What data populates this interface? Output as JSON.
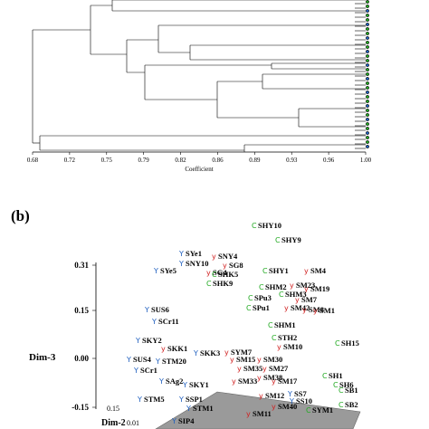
{
  "panel_b_label": "(b)",
  "chart_data": [
    {
      "type": "dendrogram",
      "xlabel": "Coefficient",
      "x_ticks": [
        "0.68",
        "0.72",
        "0.75",
        "0.79",
        "0.82",
        "0.86",
        "0.89",
        "0.93",
        "0.96",
        "1.00"
      ],
      "xlim": [
        0.68,
        1.0
      ]
    },
    {
      "type": "scatter",
      "zlabel": "Dim-3",
      "ylabel": "Dim-2",
      "z_ticks": [
        "0.31",
        "0.15",
        "0.00",
        "-0.15"
      ],
      "y_ticks": [
        "0.15",
        "0.01"
      ],
      "groups": {
        "C": "#22aa22",
        "Y": "#1f5fbf",
        "y": "#d02020"
      },
      "points": [
        {
          "label": "SHY10",
          "group": "C"
        },
        {
          "label": "SHY9",
          "group": "C"
        },
        {
          "label": "SYe1",
          "group": "Y"
        },
        {
          "label": "SNY4",
          "group": "y"
        },
        {
          "label": "SNY10",
          "group": "Y"
        },
        {
          "label": "SG8",
          "group": "y"
        },
        {
          "label": "SYe5",
          "group": "Y"
        },
        {
          "label": "SG4",
          "group": "y"
        },
        {
          "label": "SHK5",
          "group": "C"
        },
        {
          "label": "SHK9",
          "group": "C"
        },
        {
          "label": "SHY1",
          "group": "C"
        },
        {
          "label": "SM4",
          "group": "y"
        },
        {
          "label": "SHM2",
          "group": "C"
        },
        {
          "label": "SM23",
          "group": "y"
        },
        {
          "label": "SM19",
          "group": "y"
        },
        {
          "label": "SHM3",
          "group": "C"
        },
        {
          "label": "SPu3",
          "group": "C"
        },
        {
          "label": "SM7",
          "group": "y"
        },
        {
          "label": "SM42",
          "group": "y"
        },
        {
          "label": "SM8",
          "group": "y"
        },
        {
          "label": "SPu1",
          "group": "C"
        },
        {
          "label": "SM1",
          "group": "y"
        },
        {
          "label": "SUS6",
          "group": "Y"
        },
        {
          "label": "SCr11",
          "group": "Y"
        },
        {
          "label": "SHM1",
          "group": "C"
        },
        {
          "label": "STH2",
          "group": "C"
        },
        {
          "label": "SKY2",
          "group": "Y"
        },
        {
          "label": "SM10",
          "group": "y"
        },
        {
          "label": "SH15",
          "group": "C"
        },
        {
          "label": "SKK1",
          "group": "y"
        },
        {
          "label": "SKK3",
          "group": "Y"
        },
        {
          "label": "SYM7",
          "group": "y"
        },
        {
          "label": "SM15",
          "group": "y"
        },
        {
          "label": "SM30",
          "group": "y"
        },
        {
          "label": "SUS4",
          "group": "Y"
        },
        {
          "label": "STM20",
          "group": "Y"
        },
        {
          "label": "SM35",
          "group": "y"
        },
        {
          "label": "SM27",
          "group": "y"
        },
        {
          "label": "SCr1",
          "group": "Y"
        },
        {
          "label": "SM38",
          "group": "y"
        },
        {
          "label": "SH1",
          "group": "C"
        },
        {
          "label": "SH6",
          "group": "C"
        },
        {
          "label": "SAg2",
          "group": "Y"
        },
        {
          "label": "SKY1",
          "group": "Y"
        },
        {
          "label": "SM33",
          "group": "y"
        },
        {
          "label": "SM17",
          "group": "y"
        },
        {
          "label": "SB1",
          "group": "C"
        },
        {
          "label": "STM5",
          "group": "Y"
        },
        {
          "label": "SSP1",
          "group": "Y"
        },
        {
          "label": "SM12",
          "group": "y"
        },
        {
          "label": "SS7",
          "group": "Y"
        },
        {
          "label": "SS10",
          "group": "Y"
        },
        {
          "label": "SB2",
          "group": "C"
        },
        {
          "label": "STM1",
          "group": "Y"
        },
        {
          "label": "SM40",
          "group": "y"
        },
        {
          "label": "SYM1",
          "group": "C"
        },
        {
          "label": "SM11",
          "group": "y"
        },
        {
          "label": "SIP4",
          "group": "Y"
        }
      ]
    }
  ]
}
